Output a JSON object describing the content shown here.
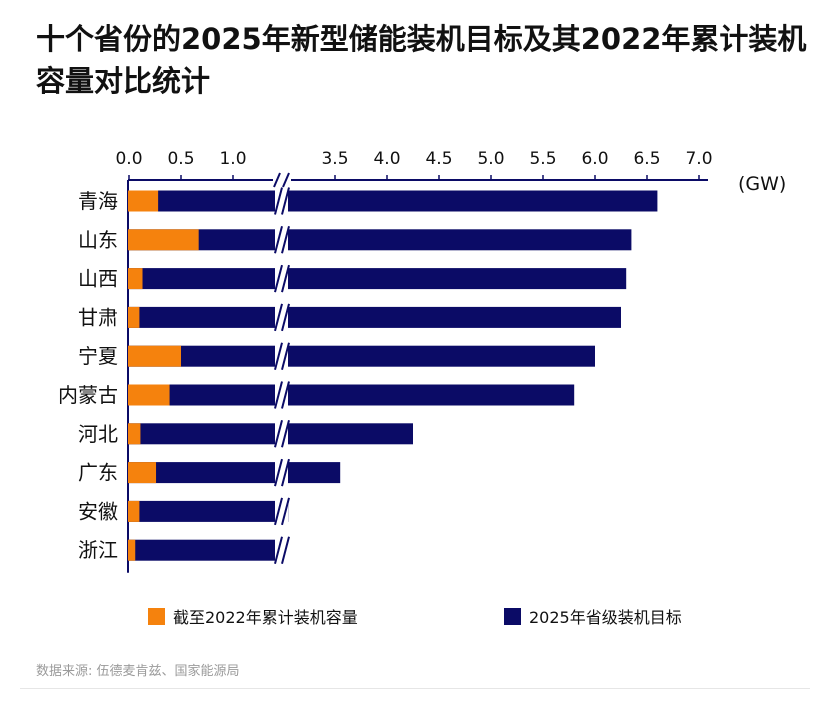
{
  "title": "十个省份的2025年新型储能装机目标及其2022年累计装机容量对比统计",
  "source": "数据来源: 伍德麦肯兹、国家能源局",
  "colors": {
    "cumulative_2022": "#F5820D",
    "target_2025": "#0B0B66",
    "axis": "#0B0B66"
  },
  "chart_data": {
    "type": "bar",
    "orientation": "horizontal",
    "stacked_overlay": true,
    "unit_label": "(GW)",
    "broken_axis": {
      "break_between": [
        1.0,
        3.5
      ],
      "break_marker": "//"
    },
    "x_ticks": [
      "0.0",
      "0.5",
      "1.0",
      "3.5",
      "4.0",
      "4.5",
      "5.0",
      "5.5",
      "6.0",
      "6.5",
      "7.0"
    ],
    "x_tick_values": [
      0.0,
      0.5,
      1.0,
      3.5,
      4.0,
      4.5,
      5.0,
      5.5,
      6.0,
      6.5,
      7.0
    ],
    "categories": [
      "青海",
      "山东",
      "山西",
      "甘肃",
      "宁夏",
      "内蒙古",
      "河北",
      "广东",
      "安徽",
      "浙江"
    ],
    "series": [
      {
        "name": "截至2022年累计装机容量",
        "values": [
          0.28,
          0.67,
          0.13,
          0.1,
          0.5,
          0.39,
          0.11,
          0.26,
          0.1,
          0.06
        ]
      },
      {
        "name": "2025年省级装机目标",
        "values": [
          6.6,
          6.35,
          6.3,
          6.25,
          6.0,
          5.8,
          4.25,
          3.55,
          3.05,
          3.0
        ]
      }
    ],
    "legend_position": "bottom",
    "grid": false
  }
}
